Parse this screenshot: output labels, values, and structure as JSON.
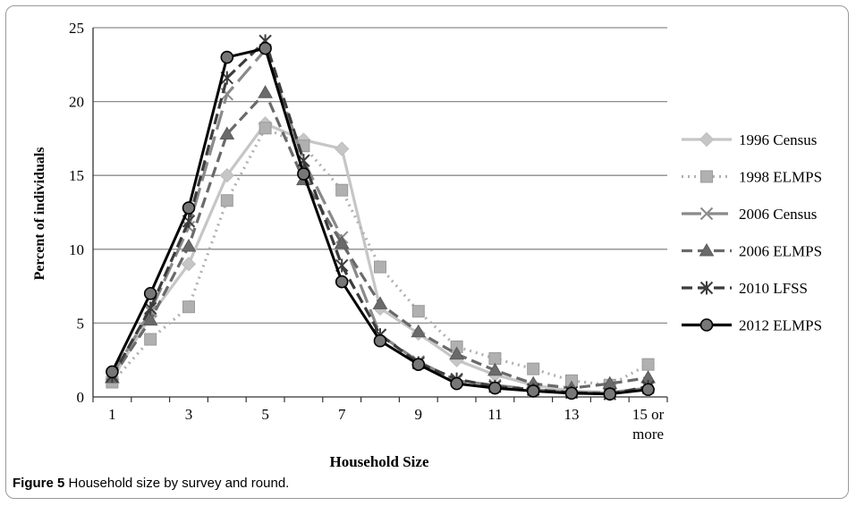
{
  "caption": {
    "label": "Figure 5",
    "text": "Household size by survey and round."
  },
  "chart_data": {
    "type": "line",
    "title": "",
    "xlabel": "Household Size",
    "ylabel": "Percent of individuals",
    "ylim": [
      0,
      25
    ],
    "yticks": [
      0,
      5,
      10,
      15,
      20,
      25
    ],
    "grid": "horizontal",
    "legend_position": "right",
    "x": [
      1,
      2,
      3,
      4,
      5,
      6,
      7,
      8,
      9,
      10,
      11,
      12,
      13,
      14,
      15
    ],
    "xtick_labels": [
      {
        "x": 1,
        "label": "1"
      },
      {
        "x": 3,
        "label": "3"
      },
      {
        "x": 5,
        "label": "5"
      },
      {
        "x": 7,
        "label": "7"
      },
      {
        "x": 9,
        "label": "9"
      },
      {
        "x": 11,
        "label": "11"
      },
      {
        "x": 13,
        "label": "13"
      },
      {
        "x": 15,
        "label": "15 or",
        "label2": "more"
      }
    ],
    "series": [
      {
        "name": "1996 Census",
        "color": "#c6c6c6",
        "dash": "solid",
        "marker": "diamond",
        "values": [
          1.2,
          5.5,
          9.0,
          15.0,
          18.5,
          17.4,
          16.8,
          6.0,
          4.3,
          2.5,
          1.5,
          0.8,
          0.4,
          0.3,
          0.5
        ]
      },
      {
        "name": "1998 ELMPS",
        "color": "#b0b0b0",
        "dash": "dotted",
        "marker": "square",
        "values": [
          1.0,
          3.9,
          6.1,
          13.3,
          18.2,
          17.0,
          14.0,
          8.8,
          5.8,
          3.4,
          2.6,
          1.9,
          1.1,
          0.8,
          2.2
        ]
      },
      {
        "name": "2006 Census",
        "color": "#8a8a8a",
        "dash": "long-dash",
        "marker": "x",
        "values": [
          1.5,
          5.8,
          11.5,
          20.5,
          23.5,
          16.0,
          10.8,
          4.2,
          2.4,
          1.1,
          0.8,
          0.5,
          0.3,
          0.3,
          0.6
        ]
      },
      {
        "name": "2006 ELMPS",
        "color": "#6a6a6a",
        "dash": "dash",
        "marker": "triangle",
        "values": [
          1.3,
          5.2,
          10.2,
          17.8,
          20.6,
          14.7,
          10.4,
          6.3,
          4.4,
          2.9,
          1.8,
          0.9,
          0.6,
          0.9,
          1.3
        ]
      },
      {
        "name": "2010 LFSS",
        "color": "#3c3c3c",
        "dash": "dash",
        "marker": "star",
        "values": [
          1.4,
          6.0,
          11.9,
          21.6,
          24.1,
          16.0,
          8.9,
          4.2,
          2.3,
          1.2,
          0.7,
          0.5,
          0.3,
          0.2,
          0.7
        ]
      },
      {
        "name": "2012 ELMPS",
        "color": "#000000",
        "dash": "solid",
        "marker": "circle",
        "values": [
          1.7,
          7.0,
          12.8,
          23.0,
          23.6,
          15.1,
          7.8,
          3.8,
          2.2,
          0.9,
          0.6,
          0.4,
          0.25,
          0.2,
          0.5
        ]
      }
    ]
  }
}
